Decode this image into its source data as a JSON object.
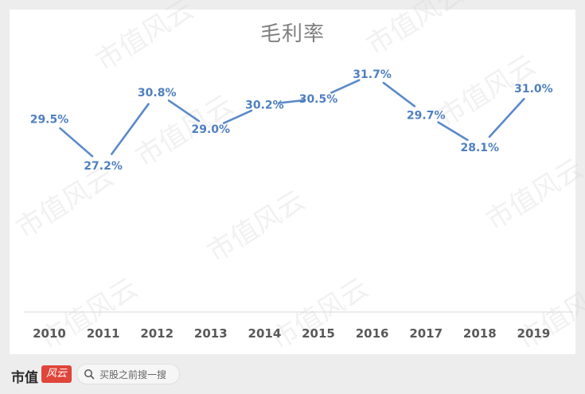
{
  "chart_data": {
    "type": "line",
    "title": "毛利率",
    "categories": [
      "2010",
      "2011",
      "2012",
      "2013",
      "2014",
      "2015",
      "2016",
      "2017",
      "2018",
      "2019"
    ],
    "values": [
      29.5,
      27.2,
      30.8,
      29.0,
      30.2,
      30.5,
      31.7,
      29.7,
      28.1,
      31.0
    ],
    "value_labels": [
      "29.5%",
      "27.2%",
      "30.8%",
      "29.0%",
      "30.2%",
      "30.5%",
      "31.7%",
      "29.7%",
      "28.1%",
      "31.0%"
    ],
    "ylim": [
      20,
      33
    ],
    "grid": false,
    "line_color": "#5b8ac9",
    "label_color": "#4f7fc1"
  },
  "watermark": "市值风云",
  "footer": {
    "brand_text": "市值",
    "brand_logo_text": "风云",
    "search_placeholder": "买股之前搜一搜"
  }
}
